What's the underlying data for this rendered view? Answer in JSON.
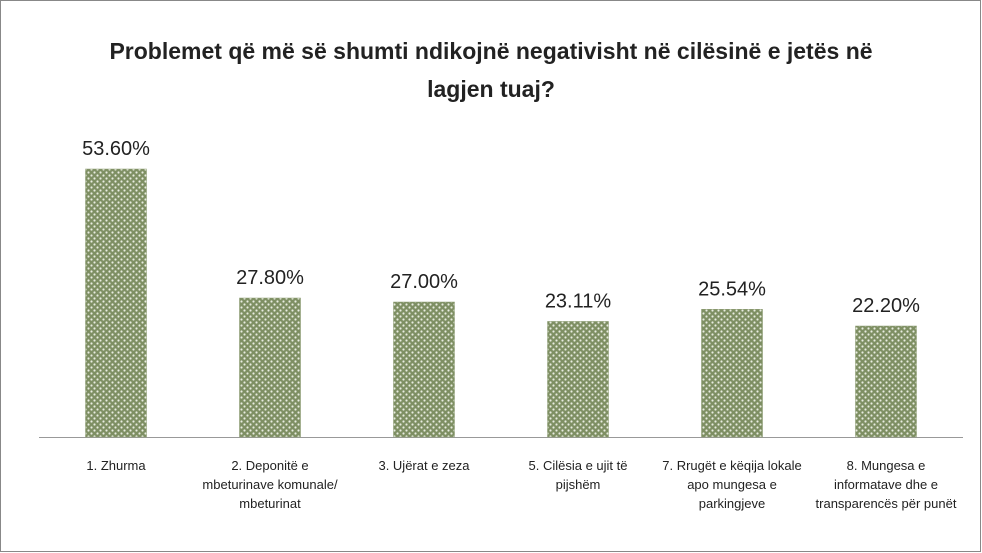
{
  "chart_data": {
    "type": "bar",
    "title": "Problemet që më së shumti ndikojnë negativisht në cilësinë e jetës në lagjen tuaj?",
    "categories": [
      "1. Zhurma",
      "2. Deponitë e mbeturinave komunale/ mbeturinat",
      "3. Ujërat e zeza",
      "5. Cilësia e ujit të pijshëm",
      "7. Rrugët e këqija lokale apo mungesa e parkingjeve",
      "8. Mungesa e informatave dhe e transparencës për punët"
    ],
    "values": [
      53.6,
      27.8,
      27.0,
      23.11,
      25.54,
      22.2
    ],
    "value_labels": [
      "53.60%",
      "27.80%",
      "27.00%",
      "23.11%",
      "25.54%",
      "22.20%"
    ],
    "color": "#8a9a70"
  }
}
